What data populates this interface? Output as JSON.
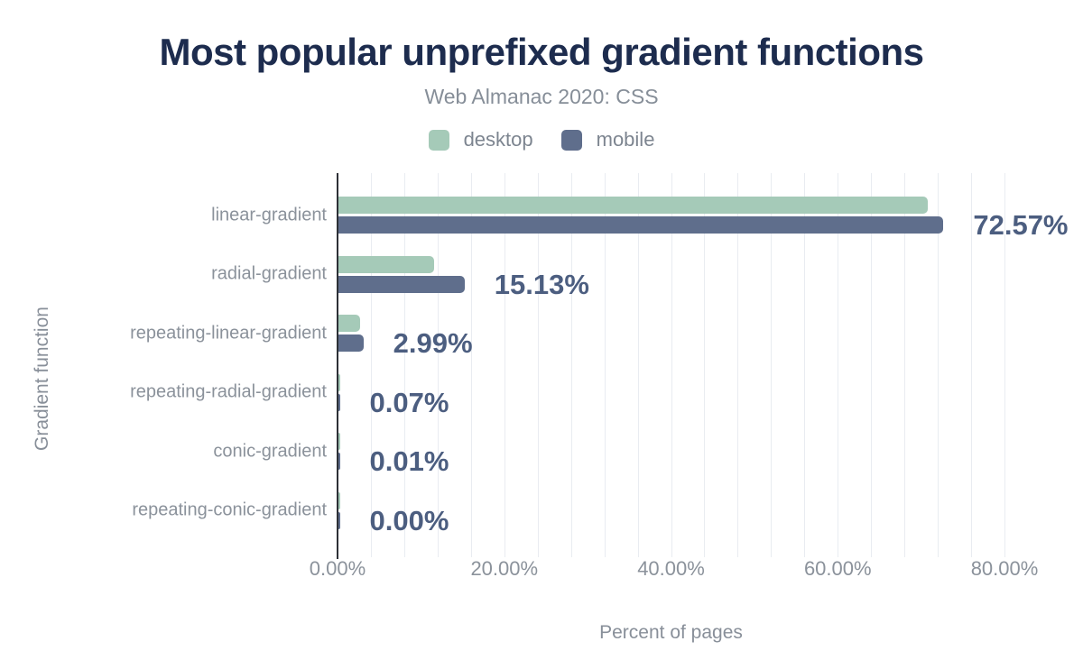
{
  "header": {
    "title": "Most popular unprefixed gradient functions",
    "subtitle": "Web Almanac 2020: CSS"
  },
  "legend": {
    "items": [
      {
        "label": "desktop",
        "color": "#a5cab8"
      },
      {
        "label": "mobile",
        "color": "#5f6e8c"
      }
    ]
  },
  "chart_data": {
    "type": "bar",
    "orientation": "horizontal",
    "title": "Most popular unprefixed gradient functions",
    "subtitle": "Web Almanac 2020: CSS",
    "categories": [
      "linear-gradient",
      "radial-gradient",
      "repeating-linear-gradient",
      "repeating-radial-gradient",
      "conic-gradient",
      "repeating-conic-gradient"
    ],
    "series": [
      {
        "name": "desktop",
        "color": "#a5cab8",
        "values": [
          70.7,
          11.5,
          2.6,
          0.08,
          0.02,
          0.01
        ]
      },
      {
        "name": "mobile",
        "color": "#5f6e8c",
        "values": [
          72.57,
          15.13,
          2.99,
          0.07,
          0.01,
          0.0
        ]
      }
    ],
    "value_labels": [
      "72.57%",
      "15.13%",
      "2.99%",
      "0.07%",
      "0.01%",
      "0.00%"
    ],
    "value_labels_series": "mobile",
    "xlabel": "Percent of pages",
    "ylabel": "Gradient function",
    "x_ticks": [
      {
        "value": 0,
        "label": "0.00%"
      },
      {
        "value": 20,
        "label": "20.00%"
      },
      {
        "value": 40,
        "label": "40.00%"
      },
      {
        "value": 60,
        "label": "60.00%"
      },
      {
        "value": 80,
        "label": "80.00%"
      }
    ],
    "xlim": [
      0,
      80
    ],
    "minor_grid_step_percent": 4,
    "grid": "vertical",
    "legend_position": "top",
    "value_label_color": "#4c5e80",
    "axis_line_color": "#2d3036"
  }
}
